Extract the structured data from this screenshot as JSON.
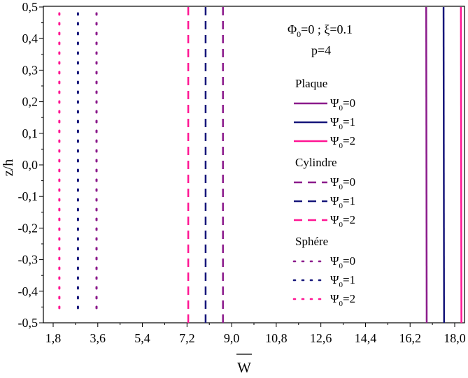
{
  "chart_data": {
    "type": "line",
    "xlabel": "W",
    "ylabel": "z/h",
    "xlim": [
      1.8,
      19.0
    ],
    "ylim": [
      -0.5,
      0.5
    ],
    "x_ticks": [
      1.8,
      3.6,
      5.4,
      7.2,
      9.0,
      10.8,
      12.6,
      14.4,
      16.2,
      18.0
    ],
    "x_tick_labels": [
      "1,8",
      "3,6",
      "5,4",
      "7,2",
      "9,0",
      "10,8",
      "12,6",
      "14,4",
      "16,2",
      "18,0"
    ],
    "y_ticks": [
      0.5,
      0.4,
      0.3,
      0.2,
      0.1,
      0.0,
      -0.1,
      -0.2,
      -0.3,
      -0.4,
      -0.5
    ],
    "y_tick_labels": [
      "0,5",
      "0,4",
      "0,3",
      "0,2",
      "0,1",
      "0,0",
      "-0,1",
      "-0,2",
      "-0,3",
      "-0,4",
      "-0,5"
    ],
    "annotation": {
      "phi_label": "Φ",
      "phi_sub": "0",
      "phi_rest": "=0 ; ξ=0.1",
      "p_label": "p=4"
    },
    "legend_groups": [
      {
        "name": "Plaque",
        "style": "solid",
        "entries": [
          {
            "psi": "Ψ",
            "sub": "0",
            "value": "=0",
            "color": "#8B1A8B"
          },
          {
            "psi": "Ψ",
            "sub": "0",
            "value": "=1",
            "color": "#16167A"
          },
          {
            "psi": "Ψ",
            "sub": "0",
            "value": "=2",
            "color": "#FF1493"
          }
        ]
      },
      {
        "name": "Cylindre",
        "style": "dash",
        "entries": [
          {
            "psi": "Ψ",
            "sub": "0",
            "value": "=0",
            "color": "#8B1A8B"
          },
          {
            "psi": "Ψ",
            "sub": "0",
            "value": "=1",
            "color": "#16167A"
          },
          {
            "psi": "Ψ",
            "sub": "0",
            "value": "=2",
            "color": "#FF1493"
          }
        ]
      },
      {
        "name": "Sphére",
        "style": "dot",
        "entries": [
          {
            "psi": "Ψ",
            "sub": "0",
            "value": "=0",
            "color": "#8B1A8B"
          },
          {
            "psi": "Ψ",
            "sub": "0",
            "value": "=1",
            "color": "#16167A"
          },
          {
            "psi": "Ψ",
            "sub": "0",
            "value": "=2",
            "color": "#FF1493"
          }
        ]
      }
    ],
    "series": [
      {
        "name": "Plaque Ψ0=0",
        "style": "solid",
        "color": "#8B1A8B",
        "x": [
          16.85,
          16.87
        ],
        "y": [
          0.5,
          -0.5
        ]
      },
      {
        "name": "Plaque Ψ0=1",
        "style": "solid",
        "color": "#16167A",
        "x": [
          17.55,
          17.57
        ],
        "y": [
          0.5,
          -0.5
        ]
      },
      {
        "name": "Plaque Ψ0=2",
        "style": "solid",
        "color": "#FF1493",
        "x": [
          18.25,
          18.27
        ],
        "y": [
          0.5,
          -0.5
        ]
      },
      {
        "name": "Cylindre Ψ0=0",
        "style": "dash",
        "color": "#8B1A8B",
        "x": [
          8.65,
          8.65
        ],
        "y": [
          0.5,
          -0.5
        ]
      },
      {
        "name": "Cylindre Ψ0=1",
        "style": "dash",
        "color": "#16167A",
        "x": [
          7.95,
          7.95
        ],
        "y": [
          0.5,
          -0.5
        ]
      },
      {
        "name": "Cylindre Ψ0=2",
        "style": "dash",
        "color": "#FF1493",
        "x": [
          7.25,
          7.25
        ],
        "y": [
          0.5,
          -0.5
        ]
      },
      {
        "name": "Sphére Ψ0=0",
        "style": "dot",
        "color": "#8B1A8B",
        "x": [
          3.55,
          3.55
        ],
        "y": [
          0.48,
          -0.48
        ]
      },
      {
        "name": "Sphére Ψ0=1",
        "style": "dot",
        "color": "#16167A",
        "x": [
          2.8,
          2.8
        ],
        "y": [
          0.48,
          -0.48
        ]
      },
      {
        "name": "Sphére Ψ0=2",
        "style": "dot",
        "color": "#FF1493",
        "x": [
          2.05,
          2.05
        ],
        "y": [
          0.48,
          -0.48
        ]
      }
    ]
  }
}
